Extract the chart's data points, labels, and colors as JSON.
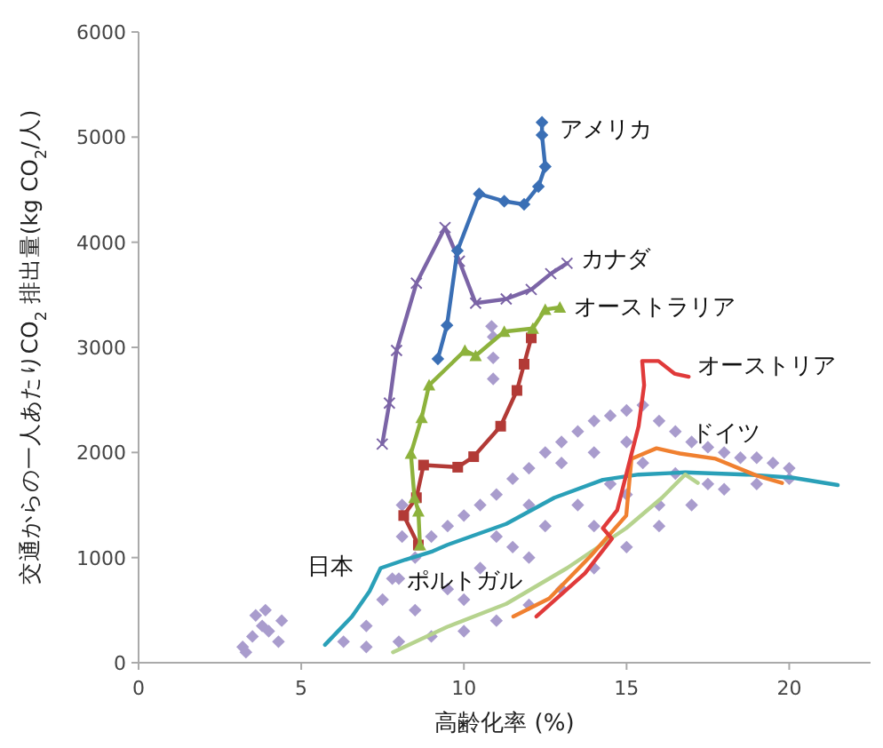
{
  "chart_data": {
    "type": "line",
    "xlabel": "高齢化率 (%)",
    "ylabel": "交通からの一人あたりCO$_{2}$ 排出量(kg CO$_{2}$/人)",
    "xlim": [
      0,
      22.5
    ],
    "xticks": [
      0,
      5,
      10,
      15,
      20
    ],
    "ylim": [
      0,
      6000
    ],
    "yticks": [
      0,
      1000,
      2000,
      3000,
      4000,
      5000,
      6000
    ],
    "grid": false,
    "series": [
      {
        "type": "scatter",
        "color": "#a99ccd",
        "marker": "diamond",
        "x": [
          3.2,
          3.5,
          3.8,
          4.0,
          4.3,
          3.6,
          3.9,
          4.4,
          3.3,
          6.3,
          7,
          7.5,
          8,
          8.5,
          9,
          9.5,
          10,
          10.5,
          11,
          11.5,
          12,
          12.5,
          13,
          13.5,
          14,
          14.5,
          15,
          15.5,
          16,
          16.5,
          17,
          17.5,
          18,
          18.5,
          19,
          19.5,
          20,
          7,
          8,
          9,
          10,
          11,
          12,
          13,
          14,
          15,
          16,
          17,
          18,
          19,
          20,
          8.5,
          9.5,
          10.5,
          11.5,
          12.5,
          13.5,
          14.5,
          15.5,
          16.5,
          17.5,
          10,
          12,
          14,
          16,
          13,
          15,
          11,
          12,
          14,
          15,
          10.9,
          10.9,
          10.9,
          10.85,
          8.1,
          8.1,
          7.8
        ],
        "values": [
          150,
          250,
          350,
          300,
          200,
          450,
          500,
          400,
          100,
          200,
          350,
          600,
          800,
          1000,
          1200,
          1300,
          1400,
          1500,
          1600,
          1750,
          1850,
          2000,
          2100,
          2200,
          2300,
          2350,
          2400,
          2450,
          2300,
          2200,
          2100,
          2050,
          2000,
          1950,
          1950,
          1900,
          1850,
          150,
          200,
          250,
          300,
          400,
          550,
          700,
          900,
          1100,
          1300,
          1500,
          1650,
          1700,
          1750,
          500,
          700,
          900,
          1100,
          1300,
          1500,
          1700,
          1900,
          1800,
          1700,
          600,
          1000,
          1300,
          1500,
          1900,
          2100,
          1200,
          1500,
          2000,
          1600,
          2700,
          2900,
          3100,
          3200,
          1200,
          1500,
          800
        ]
      },
      {
        "name": "日本",
        "color": "#2aa0b8",
        "marker": "none",
        "x": [
          5.73,
          6.56,
          7.1,
          7.44,
          8.2,
          9.04,
          9.48,
          11.3,
          12.78,
          14.27,
          15.37,
          16.8,
          18.68,
          20.11,
          21.49
        ],
        "values": [
          170,
          440,
          680,
          900,
          980,
          1060,
          1120,
          1320,
          1570,
          1740,
          1790,
          1810,
          1790,
          1760,
          1690
        ]
      },
      {
        "name": "ポルトガル",
        "color": "#b6d38e",
        "marker": "none",
        "x": [
          7.82,
          9.48,
          11.3,
          13.17,
          14.99,
          16.09,
          16.8,
          17.19
        ],
        "values": [
          100,
          340,
          560,
          900,
          1280,
          1570,
          1790,
          1710
        ]
      },
      {
        "name": "ドイツ",
        "color": "#f08030",
        "marker": "none",
        "x": [
          11.52,
          12.62,
          13.88,
          14.99,
          15.15,
          15.92,
          16.64,
          17.74,
          19.0,
          19.78
        ],
        "values": [
          440,
          610,
          1010,
          1400,
          1940,
          2040,
          1990,
          1940,
          1780,
          1710
        ]
      },
      {
        "name": "オーストリア",
        "color": "#e03a3a",
        "marker": "none",
        "x": [
          12.23,
          13.72,
          14.55,
          14.27,
          14.71,
          14.99,
          15.37,
          15.54,
          15.48,
          15.98,
          16.47,
          16.91
        ],
        "values": [
          440,
          850,
          1180,
          1280,
          1450,
          1790,
          2250,
          2640,
          2870,
          2870,
          2750,
          2720
        ]
      },
      {
        "color": "#b23a36",
        "marker": "square",
        "x": [
          8.6,
          8.15,
          8.54,
          8.76,
          9.81,
          10.3,
          11.13,
          11.63,
          11.85,
          12.07
        ],
        "values": [
          1120,
          1400,
          1570,
          1880,
          1860,
          1960,
          2250,
          2590,
          2840,
          3090
        ]
      },
      {
        "name": "オーストラリア",
        "color": "#8db23c",
        "marker": "triangle",
        "x": [
          8.65,
          8.6,
          8.48,
          8.37,
          8.7,
          8.93,
          10.03,
          10.36,
          11.24,
          12.12,
          12.5,
          12.95
        ],
        "values": [
          1120,
          1440,
          1570,
          1990,
          2330,
          2640,
          2970,
          2920,
          3150,
          3180,
          3360,
          3380
        ]
      },
      {
        "name": "カナダ",
        "color": "#7b64a6",
        "marker": "cross",
        "x": [
          7.49,
          7.71,
          7.93,
          8.54,
          9.42,
          9.86,
          10.36,
          11.3,
          12.07,
          12.67,
          13.17
        ],
        "values": [
          2080,
          2470,
          2970,
          3610,
          4140,
          3820,
          3420,
          3460,
          3550,
          3700,
          3800
        ]
      },
      {
        "name": "アメリカ",
        "color": "#3a6fb5",
        "marker": "diamond",
        "x": [
          9.2,
          9.48,
          9.8,
          10.47,
          11.24,
          11.85,
          12.29,
          12.5,
          12.4,
          12.4
        ],
        "values": [
          2890,
          3210,
          3920,
          4460,
          4390,
          4360,
          4530,
          4720,
          5020,
          5140
        ]
      }
    ]
  }
}
